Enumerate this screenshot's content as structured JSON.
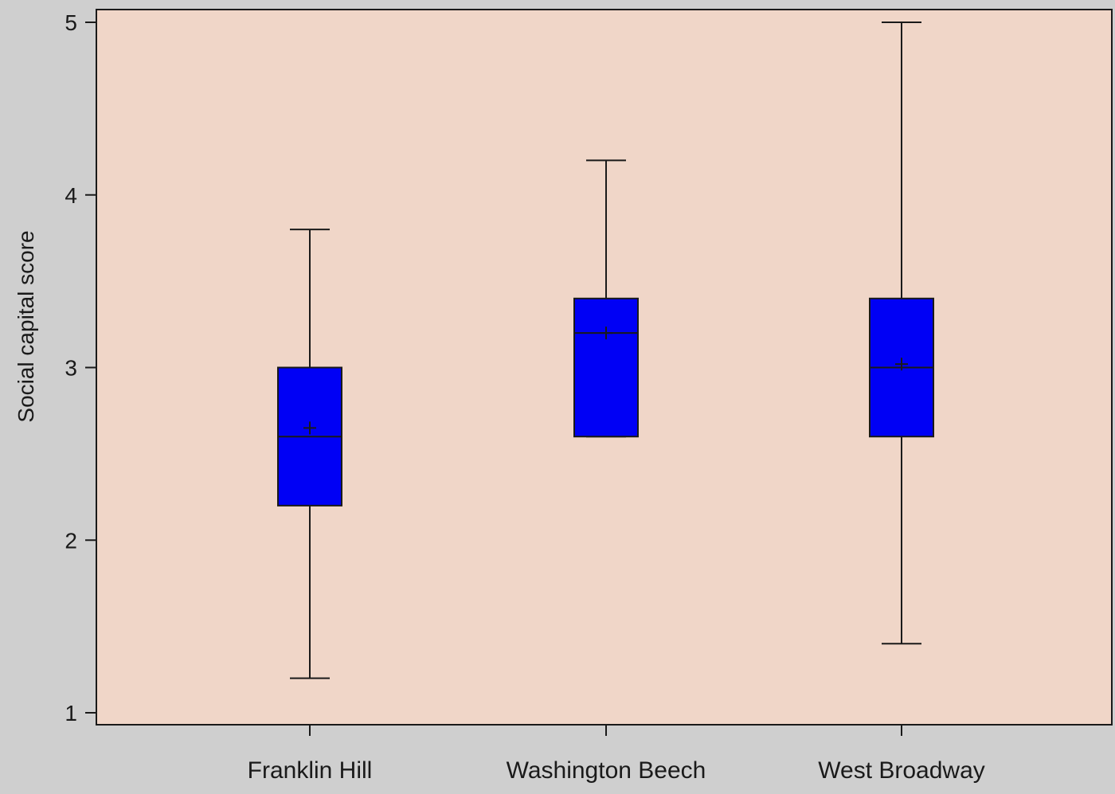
{
  "chart_data": {
    "type": "box",
    "ylabel": "Social capital score",
    "xlabel": "",
    "ylim": [
      1,
      5
    ],
    "yticks": [
      1,
      2,
      3,
      4,
      5
    ],
    "grid": false,
    "categories": [
      "Franklin Hill",
      "Washington Beech",
      "West Broadway"
    ],
    "boxes": [
      {
        "category": "Franklin Hill",
        "min": 1.2,
        "q1": 2.2,
        "median": 2.6,
        "q3": 3.0,
        "max": 3.8,
        "mean": 2.65
      },
      {
        "category": "Washington Beech",
        "min": 2.6,
        "q1": 2.6,
        "median": 3.2,
        "q3": 3.4,
        "max": 4.2,
        "mean": 3.2
      },
      {
        "category": "West Broadway",
        "min": 1.4,
        "q1": 2.6,
        "median": 3.0,
        "q3": 3.4,
        "max": 5.0,
        "mean": 3.02
      }
    ]
  },
  "colors": {
    "plot_background": "#f0d6c8",
    "page_background": "#cfcfcf",
    "box_fill": "#0000f5",
    "line": "#1a1a1a"
  }
}
